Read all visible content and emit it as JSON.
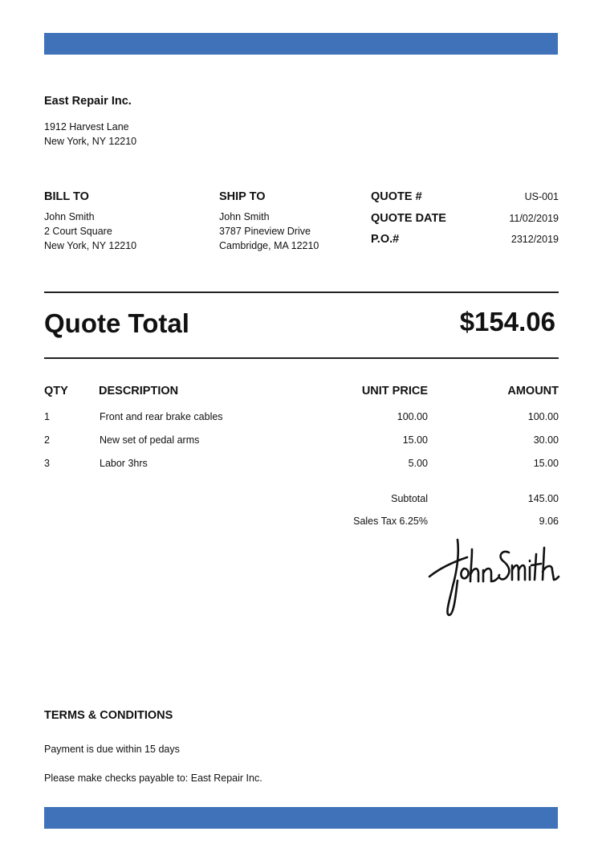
{
  "colors": {
    "accent": "#3f72b8",
    "text": "#111111"
  },
  "company": {
    "name": "East Repair Inc.",
    "address_line1": "1912 Harvest Lane",
    "address_line2": "New York, NY 12210"
  },
  "bill_to": {
    "heading": "BILL TO",
    "name": "John Smith",
    "line1": "2 Court Square",
    "line2": "New York, NY 12210"
  },
  "ship_to": {
    "heading": "SHIP TO",
    "name": "John Smith",
    "line1": "3787 Pineview Drive",
    "line2": "Cambridge, MA 12210"
  },
  "meta": [
    {
      "label": "QUOTE #",
      "value": "US-001"
    },
    {
      "label": "QUOTE DATE",
      "value": "11/02/2019"
    },
    {
      "label": "P.O.#",
      "value": "2312/2019"
    }
  ],
  "total": {
    "label": "Quote Total",
    "value": "$154.06"
  },
  "table": {
    "headers": {
      "qty": "QTY",
      "description": "DESCRIPTION",
      "unit_price": "UNIT PRICE",
      "amount": "AMOUNT"
    },
    "rows": [
      {
        "qty": "1",
        "description": "Front and rear brake cables",
        "unit_price": "100.00",
        "amount": "100.00"
      },
      {
        "qty": "2",
        "description": "New set of pedal arms",
        "unit_price": "15.00",
        "amount": "30.00"
      },
      {
        "qty": "3",
        "description": "Labor 3hrs",
        "unit_price": "5.00",
        "amount": "15.00"
      }
    ]
  },
  "summary": {
    "subtotal_label": "Subtotal",
    "subtotal": "145.00",
    "tax_label": "Sales Tax 6.25%",
    "tax": "9.06"
  },
  "signature": {
    "text": "John Smith"
  },
  "terms": {
    "heading": "TERMS & CONDITIONS",
    "line1": "Payment is due within 15 days",
    "line2": "Please make checks payable to: East Repair Inc."
  }
}
